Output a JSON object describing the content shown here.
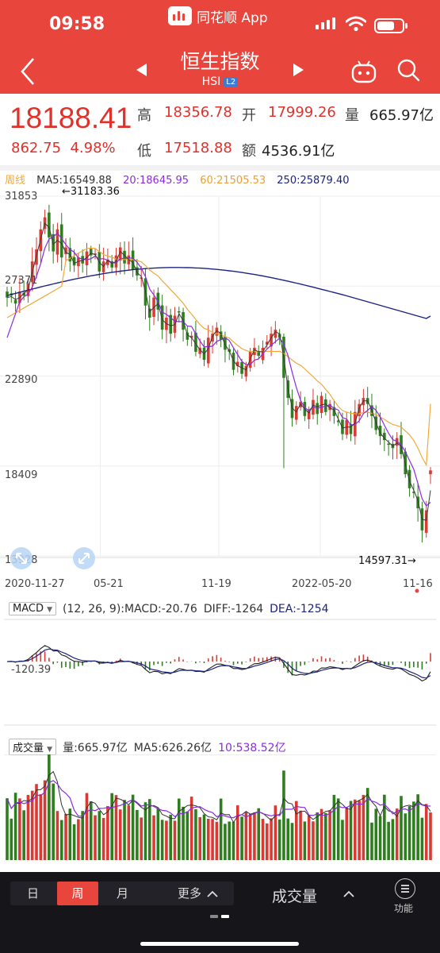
{
  "status": {
    "time": "09:58",
    "app_name": "同花顺 App"
  },
  "header": {
    "title": "恒生指数",
    "code": "HSI",
    "badge": "L2"
  },
  "quote": {
    "price": "18188.41",
    "change": "862.75",
    "change_pct": "4.98%",
    "high_label": "高",
    "high": "18356.78",
    "open_label": "开",
    "open": "17999.26",
    "volume_label": "量",
    "volume": "665.97亿",
    "low_label": "低",
    "low": "17518.88",
    "amount_label": "额",
    "amount": "4536.91亿"
  },
  "ma_legend": {
    "period": "周线",
    "ma5": "MA5:16549.88",
    "ma20": "20:18645.95",
    "ma60": "60:21505.53",
    "ma250": "250:25879.40"
  },
  "colors": {
    "up": "#d93a33",
    "down": "#2e7d1e",
    "ma5": "#3a3a3a",
    "ma20": "#8a2be2",
    "ma60": "#f0a93a",
    "ma250": "#1a237e",
    "accent": "#e8453c"
  },
  "macd_legend": {
    "name": "MACD",
    "params": "(12, 26, 9):MACD:-20.76",
    "diff": "DIFF:-1264",
    "dea": "DEA:-1254",
    "axis_label": "-120.39"
  },
  "vol_legend": {
    "name": "成交量",
    "vol": "量:665.97亿",
    "ma5": "MA5:626.26亿",
    "ma10": "10:538.52亿"
  },
  "bottom": {
    "periods": [
      "日",
      "周",
      "月"
    ],
    "active_period": "周",
    "more": "更多",
    "indicator": "成交量",
    "function": "功能"
  },
  "chart_data": {
    "type": "candlestick",
    "y_ticks": [
      "31853",
      "27371",
      "22890",
      "18409",
      "13928"
    ],
    "ylim": [
      13928,
      31853
    ],
    "x_tick_labels": [
      "2020-11-27",
      "05-21",
      "11-19",
      "2022-05-20",
      "11-16"
    ],
    "annotations": {
      "max_label": "←31183.36",
      "min_label": "14597.31→"
    },
    "max": 31183.36,
    "min": 14597.31,
    "last": {
      "open": 17999.26,
      "high": 18356.78,
      "low": 17518.88,
      "close": 18188.41,
      "change": 862.75,
      "change_pct": "4.98%"
    },
    "ma_last": {
      "MA5": 16549.88,
      "MA20": 18645.95,
      "MA60": 21505.53,
      "MA250": 25879.4
    },
    "closes": [
      26800,
      26900,
      26500,
      27100,
      26900,
      27500,
      28600,
      29200,
      30200,
      30800,
      29800,
      29100,
      30200,
      28800,
      29300,
      28600,
      28400,
      28800,
      28500,
      29100,
      28900,
      29000,
      28100,
      28600,
      28700,
      28300,
      28900,
      29300,
      28500,
      28900,
      28200,
      27900,
      27800,
      26400,
      25800,
      26800,
      26200,
      25200,
      25800,
      25000,
      25900,
      26100,
      25200,
      24700,
      24900,
      24100,
      24300,
      23700,
      24800,
      25000,
      25300,
      24700,
      24200,
      24100,
      23200,
      23600,
      23000,
      23400,
      24100,
      24300,
      23900,
      24300,
      24600,
      25000,
      25200,
      24800,
      22800,
      21800,
      20800,
      21400,
      21600,
      20900,
      21200,
      21700,
      21000,
      21900,
      21100,
      21500,
      20900,
      20600,
      20000,
      20700,
      20000,
      21100,
      21500,
      21800,
      21500,
      20900,
      20200,
      19900,
      19700,
      19500,
      19300,
      19800,
      19000,
      18000,
      17300,
      17100,
      16300,
      15200,
      16200,
      18188.41
    ]
  }
}
